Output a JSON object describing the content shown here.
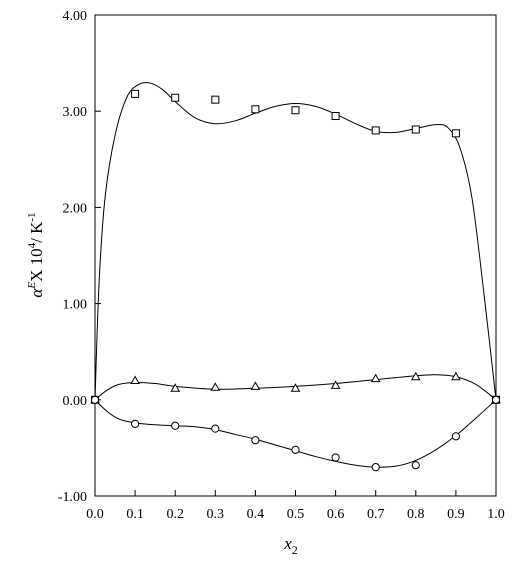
{
  "chart_data": {
    "type": "scatter",
    "xlabel": {
      "base": "x",
      "sub": "2"
    },
    "ylabel": {
      "alpha": "α",
      "sup": "E",
      "mid": "X 10",
      "exp": "4",
      "unit": "/ K",
      "unitexp": "-1"
    },
    "xlim": [
      0.0,
      1.0
    ],
    "ylim": [
      -1.0,
      4.0
    ],
    "x_ticks": [
      "0.0",
      "0.1",
      "0.2",
      "0.3",
      "0.4",
      "0.5",
      "0.6",
      "0.7",
      "0.8",
      "0.9",
      "1.0"
    ],
    "y_ticks": [
      "-1.00",
      "0.00",
      "1.00",
      "2.00",
      "3.00",
      "4.00"
    ],
    "grid": false,
    "series": [
      {
        "marker": "square",
        "points": [
          [
            0.0,
            0.0
          ],
          [
            0.1,
            3.18
          ],
          [
            0.2,
            3.14
          ],
          [
            0.3,
            3.12
          ],
          [
            0.4,
            3.02
          ],
          [
            0.5,
            3.01
          ],
          [
            0.6,
            2.95
          ],
          [
            0.7,
            2.8
          ],
          [
            0.8,
            2.81
          ],
          [
            0.9,
            2.77
          ],
          [
            1.0,
            0.0
          ]
        ],
        "fit": [
          [
            0.0,
            0.0
          ],
          [
            0.01,
            1.2
          ],
          [
            0.025,
            2.1
          ],
          [
            0.05,
            2.75
          ],
          [
            0.08,
            3.15
          ],
          [
            0.11,
            3.28
          ],
          [
            0.14,
            3.29
          ],
          [
            0.17,
            3.22
          ],
          [
            0.2,
            3.1
          ],
          [
            0.25,
            2.93
          ],
          [
            0.3,
            2.87
          ],
          [
            0.35,
            2.9
          ],
          [
            0.4,
            2.98
          ],
          [
            0.45,
            3.05
          ],
          [
            0.5,
            3.08
          ],
          [
            0.55,
            3.05
          ],
          [
            0.6,
            2.97
          ],
          [
            0.65,
            2.87
          ],
          [
            0.7,
            2.79
          ],
          [
            0.75,
            2.78
          ],
          [
            0.8,
            2.82
          ],
          [
            0.85,
            2.86
          ],
          [
            0.88,
            2.83
          ],
          [
            0.91,
            2.62
          ],
          [
            0.94,
            2.1
          ],
          [
            0.97,
            1.1
          ],
          [
            1.0,
            0.0
          ]
        ]
      },
      {
        "marker": "triangle",
        "points": [
          [
            0.0,
            0.0
          ],
          [
            0.1,
            0.2
          ],
          [
            0.2,
            0.12
          ],
          [
            0.3,
            0.13
          ],
          [
            0.4,
            0.14
          ],
          [
            0.5,
            0.12
          ],
          [
            0.6,
            0.15
          ],
          [
            0.7,
            0.22
          ],
          [
            0.8,
            0.24
          ],
          [
            0.9,
            0.24
          ],
          [
            1.0,
            0.0
          ]
        ],
        "fit": [
          [
            0.0,
            0.0
          ],
          [
            0.03,
            0.1
          ],
          [
            0.06,
            0.16
          ],
          [
            0.1,
            0.18
          ],
          [
            0.15,
            0.17
          ],
          [
            0.2,
            0.14
          ],
          [
            0.3,
            0.11
          ],
          [
            0.4,
            0.12
          ],
          [
            0.5,
            0.14
          ],
          [
            0.6,
            0.17
          ],
          [
            0.7,
            0.21
          ],
          [
            0.8,
            0.25
          ],
          [
            0.85,
            0.26
          ],
          [
            0.9,
            0.24
          ],
          [
            0.95,
            0.16
          ],
          [
            1.0,
            0.0
          ]
        ]
      },
      {
        "marker": "circle",
        "points": [
          [
            0.0,
            0.0
          ],
          [
            0.1,
            -0.25
          ],
          [
            0.2,
            -0.27
          ],
          [
            0.3,
            -0.3
          ],
          [
            0.4,
            -0.42
          ],
          [
            0.5,
            -0.52
          ],
          [
            0.6,
            -0.6
          ],
          [
            0.7,
            -0.7
          ],
          [
            0.8,
            -0.68
          ],
          [
            0.9,
            -0.38
          ],
          [
            1.0,
            0.0
          ]
        ],
        "fit": [
          [
            0.0,
            0.0
          ],
          [
            0.03,
            -0.12
          ],
          [
            0.06,
            -0.2
          ],
          [
            0.1,
            -0.24
          ],
          [
            0.15,
            -0.26
          ],
          [
            0.2,
            -0.27
          ],
          [
            0.25,
            -0.28
          ],
          [
            0.3,
            -0.31
          ],
          [
            0.35,
            -0.36
          ],
          [
            0.4,
            -0.41
          ],
          [
            0.45,
            -0.47
          ],
          [
            0.5,
            -0.53
          ],
          [
            0.55,
            -0.59
          ],
          [
            0.6,
            -0.64
          ],
          [
            0.65,
            -0.68
          ],
          [
            0.7,
            -0.7
          ],
          [
            0.75,
            -0.69
          ],
          [
            0.8,
            -0.63
          ],
          [
            0.85,
            -0.52
          ],
          [
            0.9,
            -0.37
          ],
          [
            0.95,
            -0.19
          ],
          [
            1.0,
            0.0
          ]
        ]
      }
    ]
  }
}
